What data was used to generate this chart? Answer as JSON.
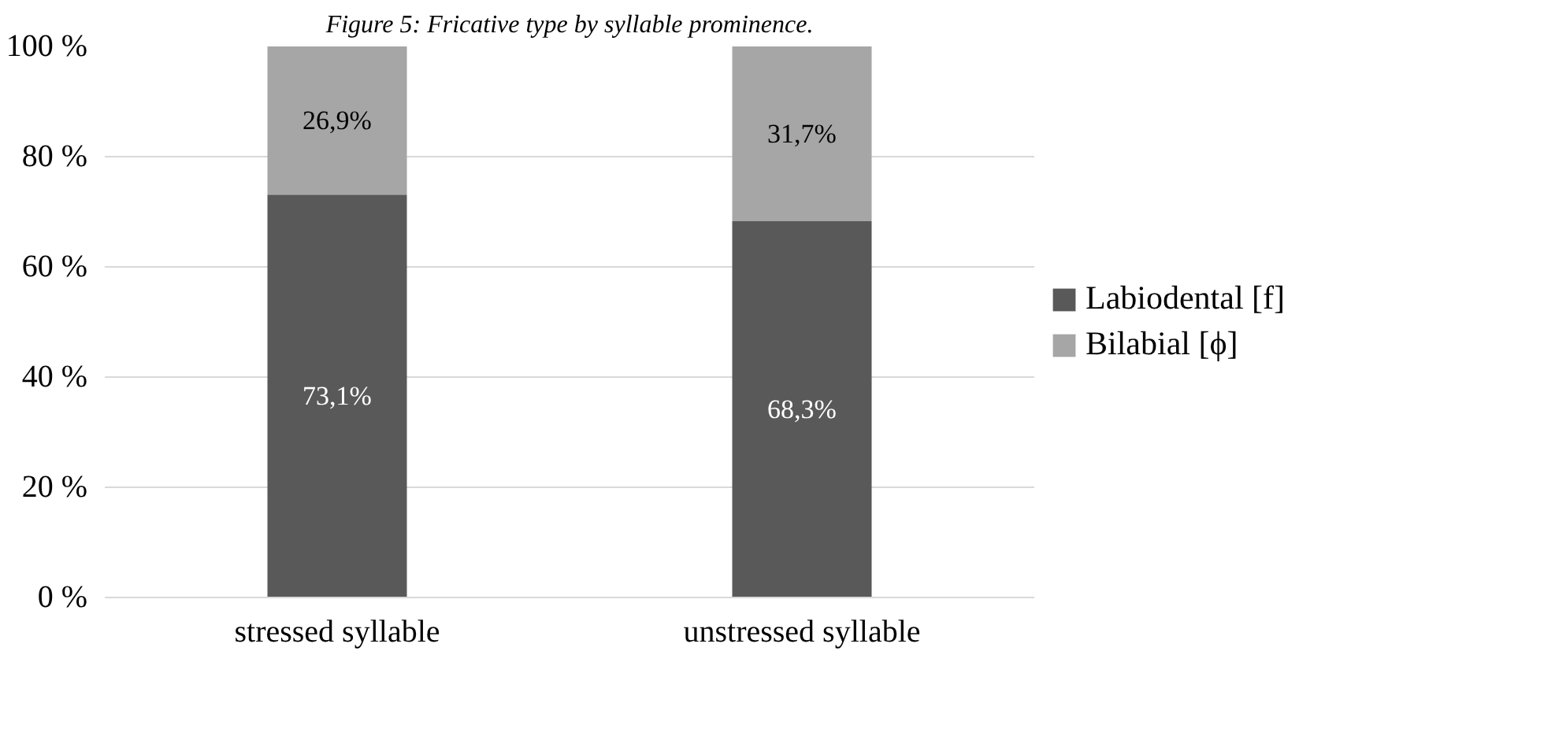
{
  "chart_data": {
    "type": "bar",
    "stacked": true,
    "title": "Figure 5: Fricative type by syllable prominence.",
    "categories": [
      "stressed syllable",
      "unstressed syllable"
    ],
    "series": [
      {
        "name": "Labiodental [f]",
        "color": "#595959",
        "values": [
          73.1,
          68.3
        ],
        "value_labels": [
          "73,1%",
          "68,3%"
        ]
      },
      {
        "name": "Bilabial [ϕ]",
        "color": "#a6a6a6",
        "values": [
          26.9,
          31.7
        ],
        "value_labels": [
          "26,9%",
          "31,7%"
        ]
      }
    ],
    "ylim": [
      0,
      100
    ],
    "yticks": [
      {
        "value": 0,
        "label": "0 %"
      },
      {
        "value": 20,
        "label": "20 %"
      },
      {
        "value": 40,
        "label": "40 %"
      },
      {
        "value": 60,
        "label": "60 %"
      },
      {
        "value": 80,
        "label": "80 %"
      },
      {
        "value": 100,
        "label": "100 %"
      }
    ],
    "grid": "y",
    "legend": "right"
  }
}
